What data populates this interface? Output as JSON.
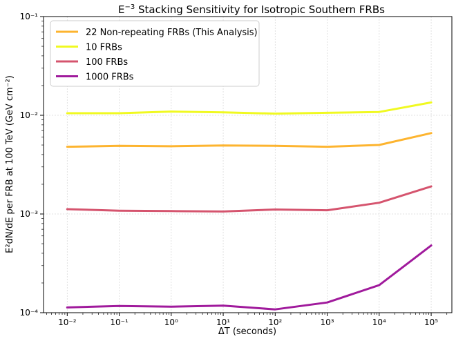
{
  "chart_data": {
    "type": "line",
    "title": "E$^{-3}$ Stacking Sensitivity for Isotropic Southern FRBs",
    "xlabel": "ΔT (seconds)",
    "ylabel": "E²dN/dE per FRB at 100 TeV (GeV cm⁻²)",
    "x_scale": "log",
    "y_scale": "log",
    "xlim": [
      0.0035,
      250000
    ],
    "ylim": [
      0.0001,
      0.1
    ],
    "x": [
      0.01,
      0.1,
      1,
      10,
      100,
      1000,
      10000,
      100000
    ],
    "x_tick_labels": [
      "10⁻²",
      "10⁻¹",
      "10⁰",
      "10¹",
      "10²",
      "10³",
      "10⁴",
      "10⁵"
    ],
    "y_tick_values": [
      0.0001,
      0.001,
      0.01,
      0.1
    ],
    "y_tick_labels": [
      "10⁻⁴",
      "10⁻³",
      "10⁻²",
      "10⁻¹"
    ],
    "grid": true,
    "legend_position": "top-left",
    "series": [
      {
        "name": "22 Non-repeating FRBs (This Analysis)",
        "color": "#fdb42f",
        "values": [
          0.0048,
          0.0049,
          0.00485,
          0.00495,
          0.0049,
          0.0048,
          0.005,
          0.0066
        ]
      },
      {
        "name": "10 FRBs",
        "color": "#f0f921",
        "values": [
          0.0105,
          0.0105,
          0.0109,
          0.0107,
          0.0104,
          0.0106,
          0.0108,
          0.0135
        ]
      },
      {
        "name": "100 FRBs",
        "color": "#d5546e",
        "values": [
          0.00112,
          0.00108,
          0.00107,
          0.00106,
          0.00111,
          0.00109,
          0.0013,
          0.0019
        ]
      },
      {
        "name": "1000 FRBs",
        "color": "#a01a9c",
        "values": [
          0.000113,
          0.000117,
          0.000115,
          0.000118,
          0.000108,
          0.000127,
          0.00019,
          0.00048
        ]
      }
    ]
  }
}
